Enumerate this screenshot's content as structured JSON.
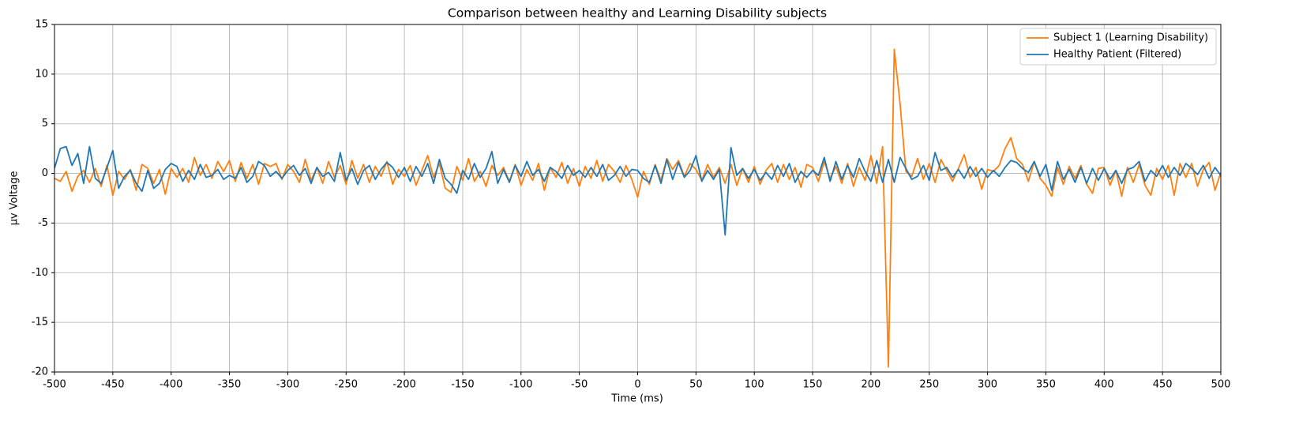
{
  "chart_data": {
    "type": "line",
    "title": "Comparison between healthy and Learning Disability subjects",
    "xlabel": "Time (ms)",
    "ylabel": "μv Voltage",
    "x": [
      -500,
      -495,
      -490,
      -485,
      -480,
      -475,
      -470,
      -465,
      -460,
      -455,
      -450,
      -445,
      -440,
      -435,
      -430,
      -425,
      -420,
      -415,
      -410,
      -405,
      -400,
      -395,
      -390,
      -385,
      -380,
      -375,
      -370,
      -365,
      -360,
      -355,
      -350,
      -345,
      -340,
      -335,
      -330,
      -325,
      -320,
      -315,
      -310,
      -305,
      -300,
      -295,
      -290,
      -285,
      -280,
      -275,
      -270,
      -265,
      -260,
      -255,
      -250,
      -245,
      -240,
      -235,
      -230,
      -225,
      -220,
      -215,
      -210,
      -205,
      -200,
      -195,
      -190,
      -185,
      -180,
      -175,
      -170,
      -165,
      -160,
      -155,
      -150,
      -145,
      -140,
      -135,
      -130,
      -125,
      -120,
      -115,
      -110,
      -105,
      -100,
      -95,
      -90,
      -85,
      -80,
      -75,
      -70,
      -65,
      -60,
      -55,
      -50,
      -45,
      -40,
      -35,
      -30,
      -25,
      -20,
      -15,
      -10,
      -5,
      0,
      5,
      10,
      15,
      20,
      25,
      30,
      35,
      40,
      45,
      50,
      55,
      60,
      65,
      70,
      75,
      80,
      85,
      90,
      95,
      100,
      105,
      110,
      115,
      120,
      125,
      130,
      135,
      140,
      145,
      150,
      155,
      160,
      165,
      170,
      175,
      180,
      185,
      190,
      195,
      200,
      205,
      210,
      215,
      220,
      225,
      230,
      235,
      240,
      245,
      250,
      255,
      260,
      265,
      270,
      275,
      280,
      285,
      290,
      295,
      300,
      305,
      310,
      315,
      320,
      325,
      330,
      335,
      340,
      345,
      350,
      355,
      360,
      365,
      370,
      375,
      380,
      385,
      390,
      395,
      400,
      405,
      410,
      415,
      420,
      425,
      430,
      435,
      440,
      445,
      450,
      455,
      460,
      465,
      470,
      475,
      480,
      485,
      490,
      495,
      500
    ],
    "series": [
      {
        "name": "Subject 1 (Learning Disability)",
        "color": "#ff7f0e",
        "values": [
          -0.5,
          -0.8,
          0.2,
          -1.8,
          -0.3,
          0.3,
          -0.9,
          0.5,
          -1.3,
          0.8,
          -2.2,
          0.2,
          -0.6,
          0.4,
          -1.7,
          0.9,
          0.5,
          -1.0,
          0.4,
          -2.1,
          0.5,
          -0.4,
          0.5,
          -0.9,
          1.6,
          -0.2,
          0.9,
          -0.5,
          1.2,
          0.2,
          1.3,
          -0.8,
          1.1,
          -0.5,
          0.9,
          -1.1,
          1.0,
          0.7,
          1.0,
          -0.6,
          0.9,
          0.2,
          -0.9,
          1.4,
          -0.7,
          0.6,
          -1.0,
          1.2,
          -0.4,
          0.8,
          -1.1,
          1.3,
          -0.5,
          0.9,
          -0.9,
          0.7,
          -0.3,
          1.2,
          -1.1,
          0.4,
          -0.3,
          0.8,
          -1.2,
          0.3,
          1.8,
          -0.4,
          1.0,
          -1.5,
          -1.9,
          0.7,
          -0.7,
          1.5,
          -0.8,
          0.2,
          -1.3,
          0.8,
          -0.2,
          0.6,
          -0.8,
          0.9,
          -1.2,
          0.4,
          -0.7,
          1.0,
          -1.7,
          0.6,
          -0.4,
          1.1,
          -1.0,
          0.5,
          -1.3,
          0.7,
          -0.5,
          1.3,
          -0.8,
          0.9,
          0.2,
          -0.9,
          0.8,
          -0.6,
          -2.4,
          0.2,
          -1.1,
          0.9,
          -0.7,
          1.5,
          0.4,
          1.3,
          -0.3,
          1.0,
          0.4,
          -0.7,
          0.9,
          -0.4,
          0.6,
          -1.0,
          0.9,
          -1.2,
          0.5,
          -0.9,
          0.7,
          -1.1,
          0.3,
          1.0,
          -0.9,
          0.9,
          -0.6,
          0.6,
          -1.4,
          0.9,
          0.6,
          -0.8,
          1.2,
          -0.5,
          0.7,
          -1.0,
          1.0,
          -1.3,
          0.6,
          -0.7,
          1.8,
          -1.0,
          2.7,
          -19.5,
          12.5,
          7.0,
          0.2,
          -0.3,
          1.5,
          -0.6,
          1.0,
          -0.9,
          1.4,
          0.3,
          -0.8,
          0.5,
          1.9,
          -0.4,
          0.6,
          -1.6,
          0.4,
          0.2,
          0.8,
          2.5,
          3.6,
          1.5,
          0.9,
          -0.8,
          1.2,
          -0.5,
          -1.2,
          -2.3,
          0.6,
          -1.1,
          0.7,
          -0.5,
          0.8,
          -1.1,
          -2.0,
          0.5,
          0.6,
          -1.2,
          0.3,
          -2.3,
          0.6,
          -0.9,
          0.9,
          -1.2,
          -2.2,
          0.5,
          -0.6,
          0.8,
          -2.2,
          1.0,
          -0.4,
          1.0,
          -1.3,
          0.4,
          1.1,
          -1.7,
          0.1
        ]
      },
      {
        "name": "Healthy Patient (Filtered)",
        "color": "#1f77b4",
        "values": [
          0.5,
          2.5,
          2.7,
          0.8,
          2.0,
          -1.0,
          2.7,
          -0.5,
          -1.0,
          0.6,
          2.3,
          -1.5,
          -0.3,
          0.3,
          -1.0,
          -1.8,
          0.3,
          -1.5,
          -1.0,
          0.4,
          1.0,
          0.7,
          -0.8,
          0.3,
          -0.6,
          0.9,
          -0.4,
          -0.2,
          0.4,
          -0.6,
          -0.2,
          -0.5,
          0.6,
          -0.9,
          -0.3,
          1.2,
          0.8,
          -0.3,
          0.2,
          -0.5,
          0.3,
          0.8,
          -0.2,
          0.5,
          -1.0,
          0.6,
          -0.3,
          0.1,
          -0.8,
          2.1,
          -0.7,
          0.5,
          -1.1,
          0.3,
          0.8,
          -0.6,
          0.4,
          1.1,
          0.6,
          -0.4,
          0.6,
          -0.8,
          0.7,
          -0.3,
          1.0,
          -1.0,
          1.4,
          -0.5,
          -1.1,
          -2.0,
          0.3,
          -0.6,
          1.0,
          -0.4,
          0.5,
          2.2,
          -1.0,
          0.4,
          -0.9,
          0.8,
          -0.3,
          1.2,
          -0.2,
          0.4,
          -0.8,
          0.6,
          0.2,
          -0.5,
          0.8,
          -0.2,
          0.3,
          -0.4,
          0.6,
          -0.3,
          0.9,
          -0.7,
          -0.2,
          0.7,
          -0.3,
          0.4,
          0.3,
          -0.5,
          -0.9,
          0.8,
          -1.0,
          1.4,
          -0.6,
          1.1,
          -0.4,
          0.3,
          1.8,
          -0.8,
          0.3,
          -0.6,
          0.4,
          -6.2,
          2.6,
          -0.2,
          0.5,
          -0.5,
          0.4,
          -0.7,
          0.1,
          -0.6,
          0.8,
          -0.3,
          1.0,
          -0.9,
          0.2,
          -0.4,
          0.3,
          -0.2,
          1.6,
          -0.8,
          1.2,
          -0.6,
          0.8,
          -0.4,
          1.5,
          0.2,
          -0.8,
          1.3,
          -0.9,
          1.4,
          -0.9,
          1.6,
          0.5,
          -0.6,
          -0.3,
          0.8,
          -0.7,
          2.1,
          0.3,
          0.6,
          -0.4,
          0.4,
          -0.5,
          0.7,
          -0.3,
          0.5,
          -0.4,
          0.3,
          -0.3,
          0.6,
          1.3,
          1.1,
          0.5,
          0.1,
          1.2,
          -0.3,
          0.9,
          -1.7,
          1.2,
          -0.6,
          0.4,
          -0.9,
          0.6,
          -1.0,
          0.5,
          -0.7,
          0.5,
          -0.6,
          0.3,
          -1.0,
          0.4,
          0.6,
          1.2,
          -0.8,
          0.3,
          -0.3,
          0.8,
          -0.4,
          0.6,
          -0.2,
          1.0,
          0.5,
          -0.1,
          0.8,
          -0.5,
          0.6,
          -0.2
        ]
      }
    ],
    "xlim": [
      -500,
      500
    ],
    "xticks": [
      -500,
      -450,
      -400,
      -350,
      -300,
      -250,
      -200,
      -150,
      -100,
      -50,
      0,
      50,
      100,
      150,
      200,
      250,
      300,
      350,
      400,
      450,
      500
    ],
    "ylim": [
      -20,
      15
    ],
    "yticks": [
      -20,
      -15,
      -10,
      -5,
      0,
      5,
      10,
      15
    ],
    "grid": true,
    "legend": "upper right"
  }
}
